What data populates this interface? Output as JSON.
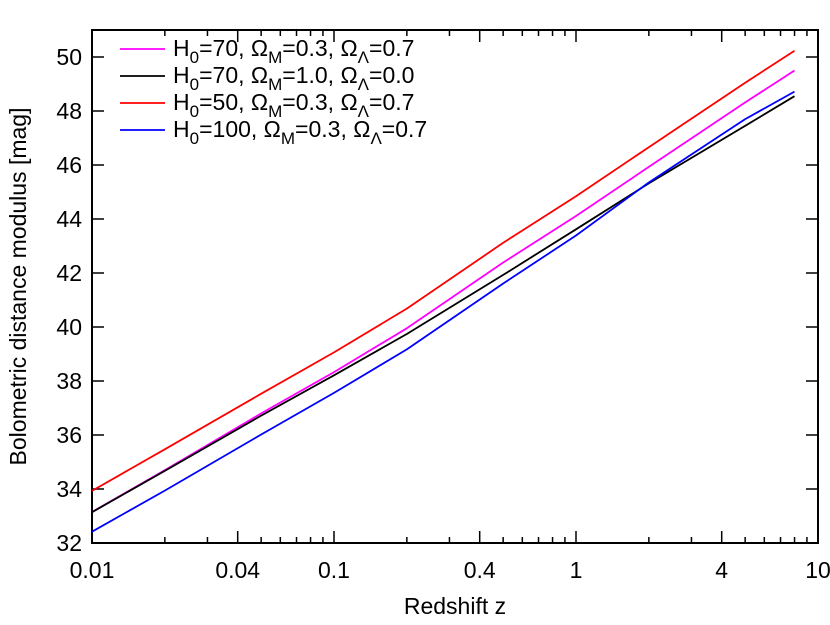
{
  "chart_data": {
    "type": "line",
    "title": "",
    "xlabel": "Redshift z",
    "ylabel": "Bolometric distance modulus [mag]",
    "x_scale": "log",
    "xlim": [
      0.01,
      10
    ],
    "ylim": [
      32,
      51
    ],
    "grid": false,
    "legend_placement": "top-left",
    "x_ticks": [
      {
        "value": 0.01,
        "label": "0.01"
      },
      {
        "value": 0.04,
        "label": "0.04"
      },
      {
        "value": 0.1,
        "label": "0.1"
      },
      {
        "value": 0.4,
        "label": "0.4"
      },
      {
        "value": 1,
        "label": "1"
      },
      {
        "value": 4,
        "label": "4"
      },
      {
        "value": 10,
        "label": "10"
      }
    ],
    "y_ticks": [
      {
        "value": 32,
        "label": "32"
      },
      {
        "value": 34,
        "label": "34"
      },
      {
        "value": 36,
        "label": "36"
      },
      {
        "value": 38,
        "label": "38"
      },
      {
        "value": 40,
        "label": "40"
      },
      {
        "value": 42,
        "label": "42"
      },
      {
        "value": 44,
        "label": "44"
      },
      {
        "value": 46,
        "label": "46"
      },
      {
        "value": 48,
        "label": "48"
      },
      {
        "value": 50,
        "label": "50"
      }
    ],
    "series": [
      {
        "name": "H0=70, ΩM=0.3, ΩΛ=0.7",
        "legend": {
          "segments": [
            {
              "text": "H"
            },
            {
              "text": "0",
              "sub": true
            },
            {
              "text": "=70, Ω"
            },
            {
              "text": "M",
              "sub": true
            },
            {
              "text": "=0.3, Ω"
            },
            {
              "text": "Λ",
              "sub": true
            },
            {
              "text": "=0.7"
            }
          ]
        },
        "color": "#ff00ff",
        "x": [
          0.01,
          0.02,
          0.05,
          0.1,
          0.2,
          0.5,
          1,
          2,
          5,
          8
        ],
        "y": [
          33.15,
          34.7,
          36.8,
          38.33,
          39.95,
          42.39,
          44.11,
          45.93,
          48.32,
          49.5
        ]
      },
      {
        "name": "H0=70, ΩM=1.0, ΩΛ=0.0",
        "legend": {
          "segments": [
            {
              "text": "H"
            },
            {
              "text": "0",
              "sub": true
            },
            {
              "text": "=70, Ω"
            },
            {
              "text": "M",
              "sub": true
            },
            {
              "text": "=1.0, Ω"
            },
            {
              "text": "Λ",
              "sub": true
            },
            {
              "text": "=0.0"
            }
          ]
        },
        "color": "#000000",
        "x": [
          0.01,
          0.02,
          0.05,
          0.1,
          0.2,
          0.5,
          1,
          2,
          5,
          8
        ],
        "y": [
          33.14,
          34.67,
          36.72,
          38.21,
          39.74,
          41.93,
          43.62,
          45.32,
          47.45,
          48.55
        ]
      },
      {
        "name": "H0=50, ΩM=0.3, ΩΛ=0.7",
        "legend": {
          "segments": [
            {
              "text": "H"
            },
            {
              "text": "0",
              "sub": true
            },
            {
              "text": "=50, Ω"
            },
            {
              "text": "M",
              "sub": true
            },
            {
              "text": "=0.3, Ω"
            },
            {
              "text": "Λ",
              "sub": true
            },
            {
              "text": "=0.7"
            }
          ]
        },
        "color": "#ff0000",
        "x": [
          0.01,
          0.02,
          0.05,
          0.1,
          0.2,
          0.5,
          1,
          2,
          5,
          8
        ],
        "y": [
          33.93,
          35.47,
          37.53,
          39.06,
          40.68,
          43.12,
          44.84,
          46.66,
          49.05,
          50.23
        ]
      },
      {
        "name": "H0=100, ΩM=0.3, ΩΛ=0.7",
        "legend": {
          "segments": [
            {
              "text": "H"
            },
            {
              "text": "0",
              "sub": true
            },
            {
              "text": "=100, Ω"
            },
            {
              "text": "M",
              "sub": true
            },
            {
              "text": "=0.3, Ω"
            },
            {
              "text": "Λ",
              "sub": true
            },
            {
              "text": "=0.7"
            }
          ]
        },
        "color": "#0000ff",
        "x": [
          0.01,
          0.02,
          0.05,
          0.1,
          0.2,
          0.5,
          1,
          2,
          5,
          8
        ],
        "y": [
          32.42,
          33.94,
          36.02,
          37.56,
          39.17,
          41.61,
          43.39,
          45.35,
          47.7,
          48.72
        ]
      }
    ]
  }
}
